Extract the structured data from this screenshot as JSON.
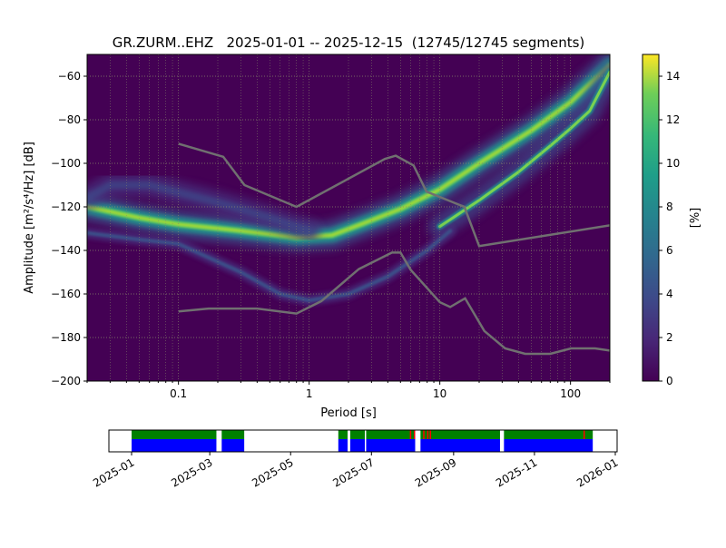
{
  "chart_data": [
    {
      "type": "heatmap",
      "title": "GR.ZURM..EHZ   2025-01-01 -- 2025-12-15  (12745/12745 segments)",
      "xlabel": "Period [s]",
      "ylabel": "Amplitude [m²/s⁴/Hz] [dB]",
      "xscale": "log",
      "xlim": [
        0.02,
        200
      ],
      "ylim": [
        -200,
        -50
      ],
      "grid": true,
      "x_ticks": [
        {
          "v": 0.1,
          "label": "0.1"
        },
        {
          "v": 1,
          "label": "1"
        },
        {
          "v": 10,
          "label": "10"
        },
        {
          "v": 100,
          "label": "100"
        }
      ],
      "y_ticks": [
        {
          "v": -60,
          "label": "−60"
        },
        {
          "v": -80,
          "label": "−80"
        },
        {
          "v": -100,
          "label": "−100"
        },
        {
          "v": -120,
          "label": "−120"
        },
        {
          "v": -140,
          "label": "−140"
        },
        {
          "v": -160,
          "label": "−160"
        },
        {
          "v": -180,
          "label": "−180"
        },
        {
          "v": -200,
          "label": "−200"
        }
      ],
      "colorbar": {
        "label": "[%]",
        "range": [
          0,
          15
        ],
        "ticks": [
          {
            "v": 0,
            "label": "0"
          },
          {
            "v": 2,
            "label": "2"
          },
          {
            "v": 4,
            "label": "4"
          },
          {
            "v": 6,
            "label": "6"
          },
          {
            "v": 8,
            "label": "8"
          },
          {
            "v": 10,
            "label": "10"
          },
          {
            "v": 12,
            "label": "12"
          },
          {
            "v": 14,
            "label": "14"
          }
        ],
        "colormap": "viridis"
      },
      "density_ridges": [
        {
          "id": "main",
          "peak_percent": 14,
          "points": [
            [
              0.02,
              -120
            ],
            [
              0.05,
              -125
            ],
            [
              0.1,
              -128
            ],
            [
              0.3,
              -131
            ],
            [
              0.8,
              -134
            ],
            [
              1.5,
              -133
            ],
            [
              2.5,
              -128
            ],
            [
              5,
              -121
            ],
            [
              10,
              -112
            ],
            [
              20,
              -100
            ],
            [
              50,
              -85
            ],
            [
              100,
              -72
            ],
            [
              200,
              -55
            ]
          ]
        },
        {
          "id": "steep",
          "peak_percent": 14,
          "points": [
            [
              10,
              -129
            ],
            [
              15,
              -122
            ],
            [
              20,
              -117
            ],
            [
              40,
              -104
            ],
            [
              70,
              -92
            ],
            [
              100,
              -84
            ],
            [
              140,
              -76
            ],
            [
              200,
              -58
            ]
          ]
        },
        {
          "id": "lower",
          "peak_percent": 4,
          "points": [
            [
              0.02,
              -132
            ],
            [
              0.05,
              -135
            ],
            [
              0.1,
              -137
            ],
            [
              0.3,
              -150
            ],
            [
              0.6,
              -160
            ],
            [
              1,
              -163
            ],
            [
              2,
              -160
            ],
            [
              4,
              -152
            ],
            [
              8,
              -140
            ],
            [
              12,
              -131
            ]
          ]
        },
        {
          "id": "upper-left",
          "peak_percent": 3,
          "points": [
            [
              0.02,
              -116
            ],
            [
              0.03,
              -110
            ],
            [
              0.06,
              -110
            ],
            [
              0.2,
              -118
            ],
            [
              0.5,
              -125
            ],
            [
              1,
              -131
            ]
          ]
        }
      ],
      "noise_models": [
        {
          "id": "high-noise-model",
          "color": "#707070",
          "points": [
            [
              0.1,
              -91
            ],
            [
              0.22,
              -97
            ],
            [
              0.32,
              -110
            ],
            [
              0.8,
              -120
            ],
            [
              3.8,
              -98
            ],
            [
              4.6,
              -96.5
            ],
            [
              6.3,
              -101
            ],
            [
              7.9,
              -113
            ],
            [
              15.4,
              -120
            ],
            [
              20,
              -138
            ],
            [
              200,
              -128.5
            ]
          ]
        },
        {
          "id": "low-noise-model",
          "color": "#707070",
          "points": [
            [
              0.1,
              -168
            ],
            [
              0.17,
              -166.7
            ],
            [
              0.4,
              -166.7
            ],
            [
              0.8,
              -169
            ],
            [
              1.24,
              -163.3
            ],
            [
              2.4,
              -148.6
            ],
            [
              4.3,
              -141
            ],
            [
              5,
              -141
            ],
            [
              6,
              -149
            ],
            [
              10,
              -163.8
            ],
            [
              12,
              -166
            ],
            [
              15.6,
              -162
            ],
            [
              21.9,
              -177
            ],
            [
              31.6,
              -185
            ],
            [
              45,
              -187.5
            ],
            [
              70,
              -187.5
            ],
            [
              101,
              -185
            ],
            [
              154,
              -185
            ],
            [
              200,
              -186
            ]
          ]
        }
      ]
    },
    {
      "type": "timeline",
      "x_ticks": [
        "2025-01",
        "2025-03",
        "2025-05",
        "2025-07",
        "2025-09",
        "2025-11",
        "2026-01"
      ],
      "xlim": [
        "2025-01-01",
        "2026-01-01"
      ],
      "colors": {
        "available": "#0000ff",
        "used": "#008000",
        "gap": "#ff0000"
      },
      "segments": [
        [
          "2025-01-01",
          "2025-03-06"
        ],
        [
          "2025-03-10",
          "2025-03-27"
        ],
        [
          "2025-06-06",
          "2025-06-13"
        ],
        [
          "2025-06-15",
          "2025-06-26"
        ],
        [
          "2025-06-27",
          "2025-08-03"
        ],
        [
          "2025-08-07",
          "2025-10-06"
        ],
        [
          "2025-10-09",
          "2025-12-15"
        ]
      ],
      "gaps": [
        "2025-07-30",
        "2025-08-02",
        "2025-08-09",
        "2025-08-12",
        "2025-08-14",
        "2025-12-08"
      ]
    }
  ]
}
